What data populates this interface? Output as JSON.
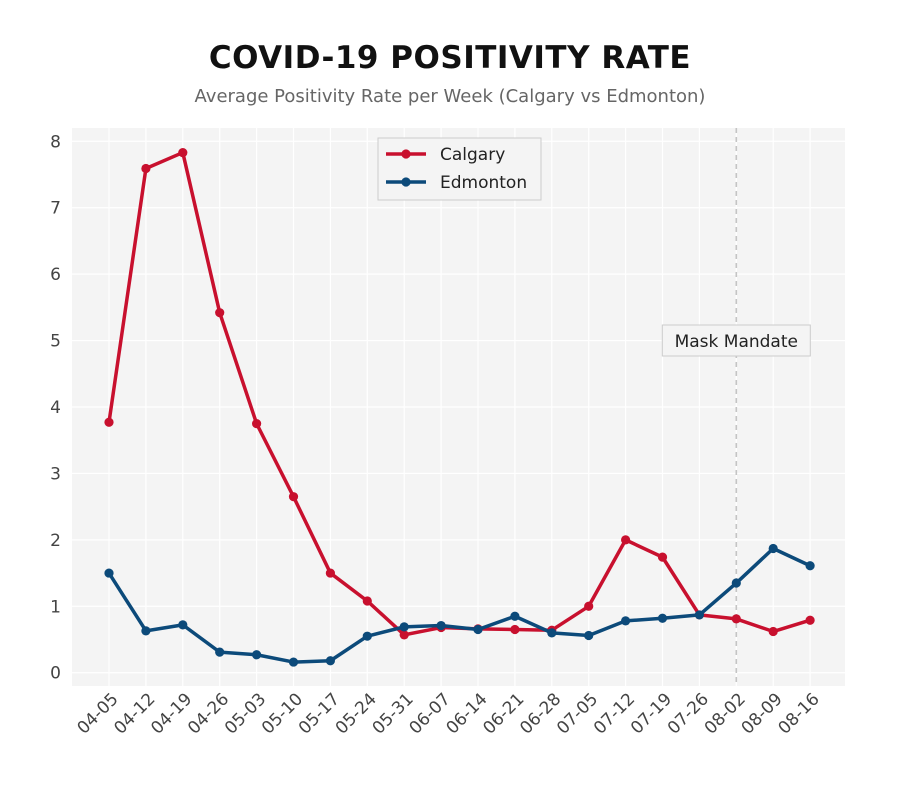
{
  "chart_data": {
    "type": "line",
    "title": "COVID-19 POSITIVITY RATE",
    "subtitle": "Average Positivity Rate per Week (Calgary vs Edmonton)",
    "xlabel": "",
    "ylabel": "",
    "categories": [
      "04-05",
      "04-12",
      "04-19",
      "04-26",
      "05-03",
      "05-10",
      "05-17",
      "05-24",
      "05-31",
      "06-07",
      "06-14",
      "06-21",
      "06-28",
      "07-05",
      "07-12",
      "07-19",
      "07-26",
      "08-02",
      "08-09",
      "08-16"
    ],
    "ylim": [
      -0.2,
      8.2
    ],
    "yticks": [
      0,
      1,
      2,
      3,
      4,
      5,
      6,
      7,
      8
    ],
    "grid": true,
    "legend_position": "top-center",
    "series": [
      {
        "name": "Calgary",
        "color": "#c8102e",
        "values": [
          3.77,
          7.59,
          7.83,
          5.42,
          3.75,
          2.65,
          1.5,
          1.08,
          0.57,
          0.68,
          0.66,
          0.65,
          0.64,
          1.0,
          2.0,
          1.74,
          0.87,
          0.81,
          0.62,
          0.79
        ]
      },
      {
        "name": "Edmonton",
        "color": "#0c4a7a",
        "values": [
          1.5,
          0.63,
          0.72,
          0.31,
          0.27,
          0.16,
          0.18,
          0.55,
          0.69,
          0.71,
          0.65,
          0.85,
          0.6,
          0.56,
          0.78,
          0.82,
          0.87,
          1.35,
          1.87,
          1.61
        ]
      }
    ],
    "annotations": [
      {
        "text": "Mask Mandate",
        "x": "08-02",
        "style": "dashed vertical line"
      }
    ]
  }
}
